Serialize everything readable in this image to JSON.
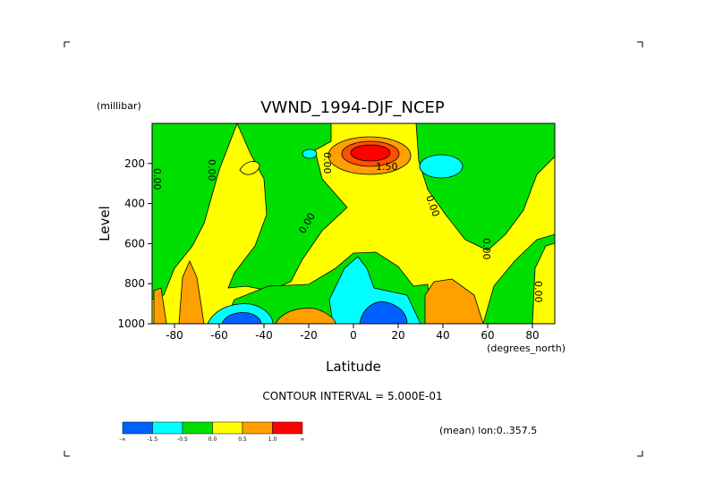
{
  "chart_data": {
    "type": "contour",
    "title": "VWND_1994-DJF_NCEP",
    "x_label": "Latitude",
    "x_units": "(degrees_north)",
    "y_label": "Level",
    "y_units": "(millibar)",
    "xlim": [
      -90,
      90
    ],
    "xticks": [
      -80,
      -60,
      -40,
      -20,
      0,
      20,
      40,
      60,
      80
    ],
    "ylim": [
      1000,
      0
    ],
    "yticks": [
      200,
      400,
      600,
      800,
      1000
    ],
    "contour_labels": [
      "0.00",
      "0.00",
      "0.00",
      "0.00",
      "0.00",
      "0.00",
      "0.00",
      "1.50"
    ],
    "footer": "CONTOUR INTERVAL = 5.000E-01",
    "note": "(mean) lon:0..357.5",
    "colorbar": {
      "colors": [
        "#0060ff",
        "#00ffff",
        "#00e000",
        "#ffff00",
        "#ffa000",
        "#ff0000"
      ],
      "labels": [
        "-∞",
        "-1.5",
        "-0.5",
        "0.0",
        "0.5",
        "1.0",
        "∞"
      ]
    }
  }
}
